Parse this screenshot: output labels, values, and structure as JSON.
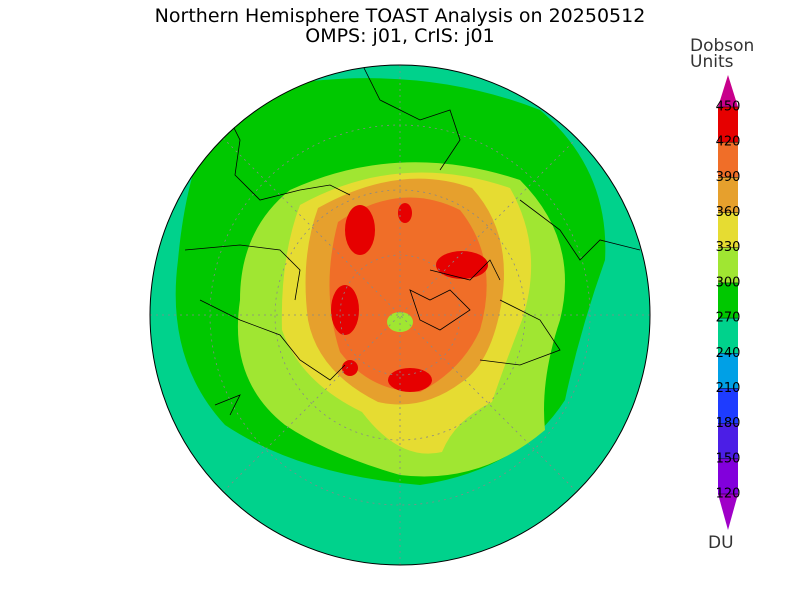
{
  "header": {
    "title": "Northern Hemisphere TOAST Analysis on 20250512",
    "subtitle": "OMPS: j01, CrIS: j01"
  },
  "colorbar": {
    "title": [
      "Dobson",
      "Units"
    ],
    "unit": "DU",
    "levels": [
      120,
      150,
      180,
      210,
      240,
      270,
      300,
      330,
      360,
      390,
      420,
      450
    ],
    "colors": [
      "#a000c8",
      "#8200dc",
      "#4b1ee6",
      "#1e3cff",
      "#00a0e6",
      "#00d28c",
      "#00c800",
      "#a0e632",
      "#e6dc32",
      "#e6a02d",
      "#f06e28",
      "#e60000",
      "#c8008c"
    ]
  }
}
